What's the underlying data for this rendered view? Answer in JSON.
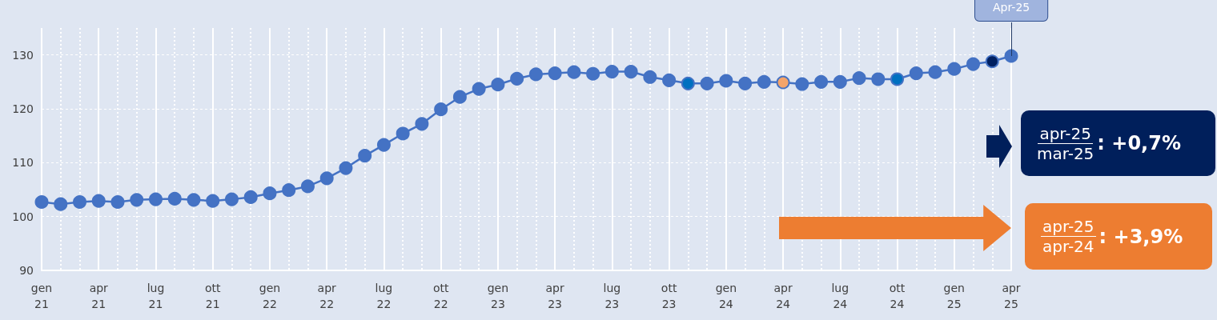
{
  "chart_data": {
    "type": "line",
    "categories": [
      "gen\n21",
      null,
      null,
      "apr\n21",
      null,
      null,
      "lug\n21",
      null,
      null,
      "ott\n21",
      null,
      null,
      "gen\n22",
      null,
      null,
      "apr\n22",
      null,
      null,
      "lug\n22",
      null,
      null,
      "ott\n22",
      null,
      null,
      "gen\n23",
      null,
      null,
      "apr\n23",
      null,
      null,
      "lug\n23",
      null,
      null,
      "ott\n23",
      null,
      null,
      "gen\n24",
      null,
      null,
      "apr\n24",
      null,
      null,
      "lug\n24",
      null,
      null,
      "ott\n24",
      null,
      null,
      "gen\n25",
      null,
      null,
      "apr\n25"
    ],
    "series": [
      {
        "color": "#4472c4",
        "values": [
          102.7,
          102.3,
          102.7,
          102.9,
          102.7,
          103.1,
          103.2,
          103.3,
          103.1,
          102.9,
          103.2,
          103.6,
          104.3,
          104.9,
          105.6,
          107.1,
          109.0,
          111.3,
          113.3,
          115.4,
          117.2,
          119.9,
          122.2,
          123.7,
          124.5,
          125.6,
          126.4,
          126.6,
          126.8,
          126.5,
          126.9,
          126.9,
          125.9,
          125.3,
          124.7,
          124.7,
          125.2,
          124.7,
          125.0,
          124.9,
          124.6,
          125.0,
          125.0,
          125.7,
          125.5,
          125.5,
          126.6,
          126.8,
          127.4,
          128.3,
          128.8,
          129.8
        ],
        "colors": [
          "#4472c4",
          "#4472c4",
          "#4472c4",
          "#4472c4",
          "#4472c4",
          "#4472c4",
          "#4472c4",
          "#4472c4",
          "#4472c4",
          "#4472c4",
          "#4472c4",
          "#4472c4",
          "#4472c4",
          "#4472c4",
          "#4472c4",
          "#4472c4",
          "#4472c4",
          "#4472c4",
          "#4472c4",
          "#4472c4",
          "#4472c4",
          "#4472c4",
          "#4472c4",
          "#4472c4",
          "#4472c4",
          "#4472c4",
          "#4472c4",
          "#4472c4",
          "#4472c4",
          "#4472c4",
          "#4472c4",
          "#4472c4",
          "#4472c4",
          "#4472c4",
          "#0070c0",
          "#4472c4",
          "#4472c4",
          "#4472c4",
          "#4472c4",
          "#f4a46a",
          "#4472c4",
          "#4472c4",
          "#4472c4",
          "#4472c4",
          "#4472c4",
          "#0070c0",
          "#4472c4",
          "#4472c4",
          "#4472c4",
          "#4472c4",
          "#002060",
          "#4472c4"
        ]
      }
    ],
    "ylim": [
      90,
      135
    ],
    "yticks": [
      90,
      100,
      110,
      120,
      130
    ],
    "grid": true,
    "marker": "circle",
    "line_style": "solid",
    "annotations": [
      {
        "text": "Apr-25",
        "x": "apr\n25",
        "y": 129.8
      },
      "apr-25",
      "mar-25",
      ": +0,7%",
      "apr-25",
      "apr-24",
      ": +3,9%"
    ]
  }
}
